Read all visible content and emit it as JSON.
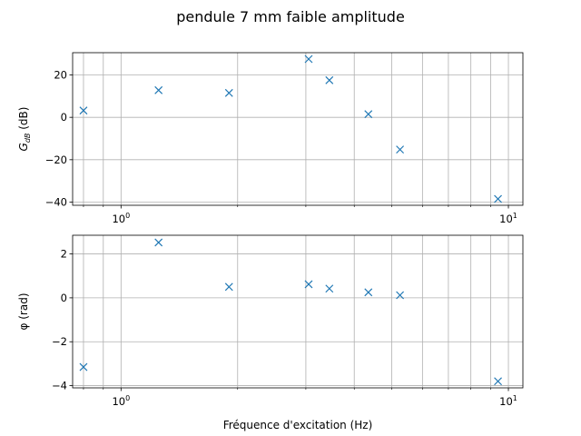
{
  "figure_title": "pendule 7 mm faible amplitude",
  "chart_data": [
    {
      "type": "scatter",
      "title": "pendule 7 mm faible amplitude",
      "xscale": "log",
      "xlabel": "",
      "ylabel": "G_dB (dB)",
      "ylabel_main": "G",
      "ylabel_sub": "dB",
      "ylabel_rest": " (dB)",
      "xlim": [
        0.75,
        10.9
      ],
      "ylim": [
        -41.5,
        30.5
      ],
      "xticks": [
        1,
        10
      ],
      "xtick_labels": [
        {
          "base": "10",
          "exp": "0"
        },
        {
          "base": "10",
          "exp": "1"
        }
      ],
      "yticks": [
        -40,
        -20,
        0,
        20
      ],
      "ytick_labels": [
        "−40",
        "−20",
        "0",
        "20"
      ],
      "grid": true,
      "marker": "x",
      "color": "#1f77b4",
      "x": [
        0.8,
        1.25,
        1.9,
        3.05,
        3.45,
        4.35,
        5.25,
        9.4
      ],
      "y": [
        3.2,
        12.8,
        11.5,
        27.5,
        17.5,
        1.5,
        -15.2,
        -38.5
      ]
    },
    {
      "type": "scatter",
      "xscale": "log",
      "xlabel": "Fréquence d'excitation (Hz)",
      "ylabel": "φ (rad)",
      "xlim": [
        0.75,
        10.9
      ],
      "ylim": [
        -4.1,
        2.85
      ],
      "xticks": [
        1,
        10
      ],
      "xtick_labels": [
        {
          "base": "10",
          "exp": "0"
        },
        {
          "base": "10",
          "exp": "1"
        }
      ],
      "yticks": [
        -4,
        -2,
        0,
        2
      ],
      "ytick_labels": [
        "−4",
        "−2",
        "0",
        "2"
      ],
      "grid": true,
      "marker": "x",
      "color": "#1f77b4",
      "x": [
        0.8,
        1.25,
        1.9,
        3.05,
        3.45,
        4.35,
        5.25,
        9.4
      ],
      "y": [
        -3.15,
        2.52,
        0.5,
        0.62,
        0.42,
        0.25,
        0.12,
        -3.8
      ]
    }
  ]
}
